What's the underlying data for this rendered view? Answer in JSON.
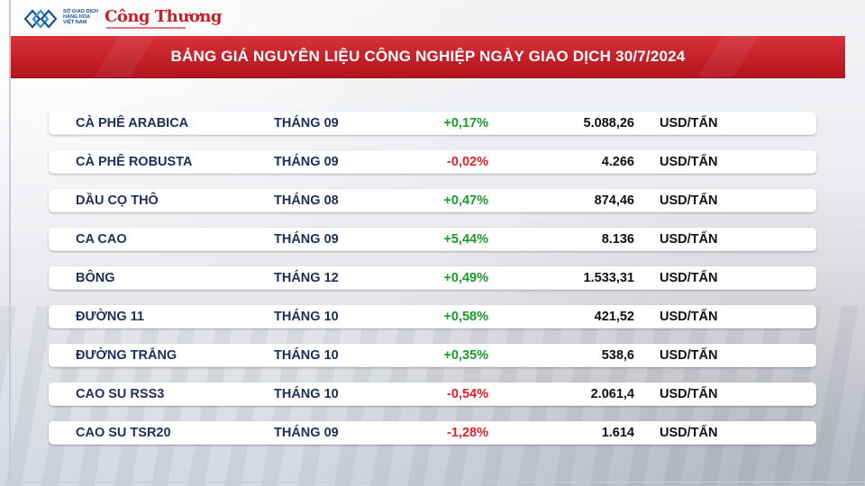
{
  "header": {
    "org_lines": [
      "SỞ GIAO DỊCH",
      "HÀNG HÓA",
      "VIỆT NAM"
    ],
    "brand": "Công Thương"
  },
  "title": "BẢNG GIÁ NGUYÊN LIỆU CÔNG NGHIỆP NGÀY GIAO DỊCH 30/7/2024",
  "colors": {
    "banner_red": "#c8202a",
    "up_green": "#1a9b2c",
    "down_red": "#e0202a",
    "text_navy": "#1d2f5a"
  },
  "rows": [
    {
      "name": "CÀ PHÊ ARABICA",
      "month": "THÁNG 09",
      "change": "+0,17%",
      "direction": "up",
      "price": "5.088,26",
      "unit": "USD/TẤN"
    },
    {
      "name": "CÀ PHÊ ROBUSTA",
      "month": "THÁNG 09",
      "change": "-0,02%",
      "direction": "down",
      "price": "4.266",
      "unit": "USD/TẤN"
    },
    {
      "name": "DẦU CỌ THÔ",
      "month": "THÁNG 08",
      "change": "+0,47%",
      "direction": "up",
      "price": "874,46",
      "unit": "USD/TẤN"
    },
    {
      "name": "CA CAO",
      "month": "THÁNG 09",
      "change": "+5,44%",
      "direction": "up",
      "price": "8.136",
      "unit": "USD/TẤN"
    },
    {
      "name": "BÔNG",
      "month": "THÁNG 12",
      "change": "+0,49%",
      "direction": "up",
      "price": "1.533,31",
      "unit": "USD/TẤN"
    },
    {
      "name": "ĐƯỜNG 11",
      "month": "THÁNG 10",
      "change": "+0,58%",
      "direction": "up",
      "price": "421,52",
      "unit": "USD/TẤN"
    },
    {
      "name": "ĐƯỜNG TRẮNG",
      "month": "THÁNG 10",
      "change": "+0,35%",
      "direction": "up",
      "price": "538,6",
      "unit": "USD/TẤN"
    },
    {
      "name": "CAO SU RSS3",
      "month": "THÁNG 10",
      "change": "-0,54%",
      "direction": "down",
      "price": "2.061,4",
      "unit": "USD/TẤN"
    },
    {
      "name": "CAO SU TSR20",
      "month": "THÁNG 09",
      "change": "-1,28%",
      "direction": "down",
      "price": "1.614",
      "unit": "USD/TẤN"
    }
  ]
}
